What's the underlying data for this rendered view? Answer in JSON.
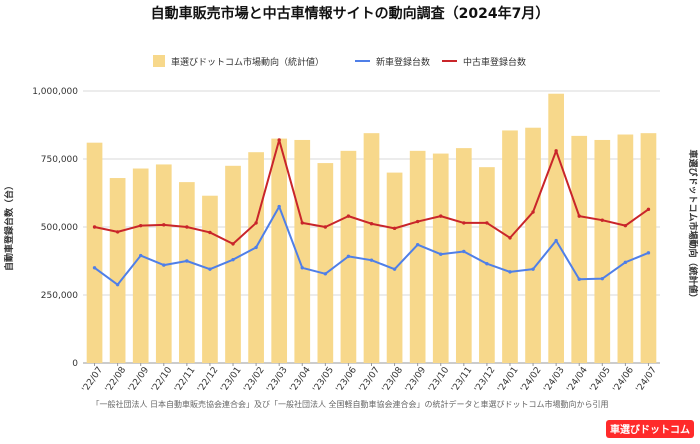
{
  "chart_data": {
    "type": "bar",
    "title": "自動車販売市場と中古車情報サイトの動向調査（2024年7月）",
    "legend": [
      {
        "name": "車選びドットコム市場動向（統計値）",
        "color": "#f7d88b"
      },
      {
        "name": "新車登録台数",
        "color": "#4f7fe8"
      },
      {
        "name": "中古車登録台数",
        "color": "#c9252a"
      }
    ],
    "categories": [
      "'22/07",
      "'22/08",
      "'22/09",
      "'22/10",
      "'22/11",
      "'22/12",
      "'23/01",
      "'23/02",
      "'23/03",
      "'23/04",
      "'23/05",
      "'23/06",
      "'23/07",
      "'23/08",
      "'23/09",
      "'23/10",
      "'23/11",
      "'23/12",
      "'24/01",
      "'24/02",
      "'24/03",
      "'24/04",
      "'24/05",
      "'24/06",
      "'24/07"
    ],
    "series": [
      {
        "name": "車選びドットコム市場動向（統計値）",
        "type": "bar",
        "axis": "right",
        "values": [
          810000,
          680000,
          715000,
          730000,
          665000,
          615000,
          725000,
          775000,
          825000,
          820000,
          735000,
          780000,
          845000,
          700000,
          780000,
          770000,
          790000,
          720000,
          855000,
          865000,
          990000,
          835000,
          820000,
          840000,
          845000
        ]
      },
      {
        "name": "新車登録台数",
        "type": "line",
        "axis": "left",
        "values": [
          350000,
          288000,
          395000,
          360000,
          375000,
          345000,
          380000,
          425000,
          575000,
          350000,
          328000,
          392000,
          378000,
          345000,
          435000,
          400000,
          410000,
          365000,
          335000,
          345000,
          450000,
          308000,
          310000,
          370000,
          405000
        ]
      },
      {
        "name": "中古車登録台数",
        "type": "line",
        "axis": "left",
        "values": [
          500000,
          482000,
          505000,
          508000,
          500000,
          480000,
          438000,
          515000,
          820000,
          515000,
          500000,
          540000,
          512000,
          495000,
          520000,
          540000,
          515000,
          515000,
          460000,
          555000,
          780000,
          540000,
          525000,
          505000,
          565000
        ]
      }
    ],
    "y_left": {
      "label": "自動車登録台数（台）",
      "ticks": [
        "0",
        "250,000",
        "500,000",
        "750,000",
        "1,000,000"
      ],
      "ylim": [
        0,
        1000000
      ]
    },
    "y_right": {
      "label": "車選びドットコム市場動向（統計値）",
      "ylim": [
        0,
        1000000
      ]
    },
    "source": "「一般社団法人 日本自動車販売協会連合会」及び「一般社団法人 全国軽自動車協会連合会」の統計データと車選びドットコム市場動向から引用",
    "brand": "車選びドットコム",
    "grid": true
  }
}
